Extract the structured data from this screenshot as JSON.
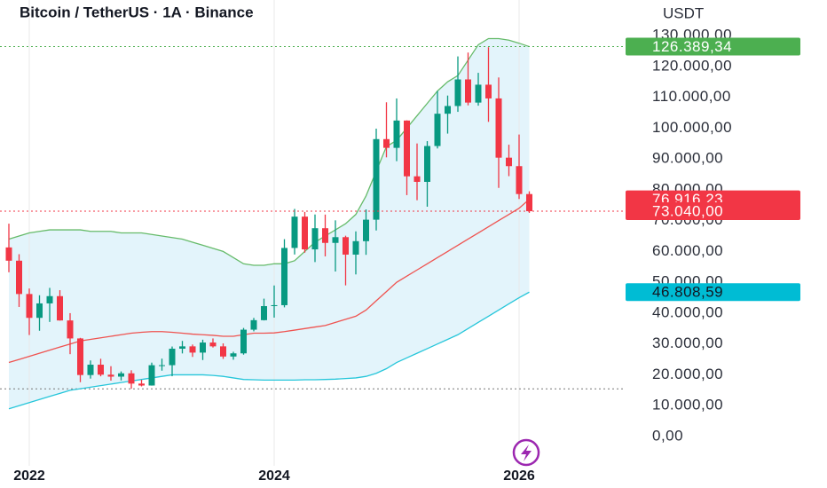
{
  "chart_data": {
    "type": "candlestick",
    "title": "Bitcoin / TetherUS · 1A · Binance",
    "currency": "USDT",
    "categories": [
      null,
      null,
      "2022",
      null,
      null,
      null,
      null,
      null,
      null,
      null,
      null,
      null,
      null,
      null,
      null,
      null,
      null,
      null,
      null,
      null,
      null,
      null,
      null,
      null,
      null,
      null,
      "2024",
      null,
      null,
      null,
      null,
      null,
      null,
      null,
      null,
      null,
      null,
      null,
      null,
      null,
      null,
      null,
      null,
      null,
      null,
      null,
      null,
      null,
      null,
      null,
      "2026",
      null
    ],
    "open": [
      61300,
      57000,
      46200,
      38470,
      43160,
      45510,
      37630,
      31800,
      19940,
      23290,
      20050,
      19420,
      20490,
      17160,
      16540,
      23120,
      23130,
      28470,
      29230,
      27210,
      30470,
      29230,
      25940,
      26960,
      34640,
      37720,
      42280,
      42580,
      61130,
      71280,
      60670,
      67530,
      62770,
      64630,
      58970,
      63330,
      70290,
      96410,
      93580,
      102430,
      84350,
      82550,
      94170,
      104640,
      107140,
      115760,
      108250,
      114050,
      109600,
      90400,
      87650,
      78600
    ],
    "high": [
      69000,
      59100,
      47990,
      45800,
      48190,
      47450,
      40000,
      31990,
      24670,
      25210,
      22800,
      21100,
      21480,
      18390,
      23960,
      25250,
      29180,
      31000,
      29820,
      31390,
      31800,
      30200,
      27480,
      35200,
      38450,
      44700,
      48970,
      63970,
      73780,
      72800,
      71980,
      71950,
      70080,
      65100,
      66500,
      73620,
      99800,
      108350,
      109590,
      102500,
      95000,
      95760,
      111980,
      110530,
      123220,
      124470,
      117900,
      126200,
      116400,
      94600,
      97900,
      79500
    ],
    "low": [
      53250,
      42000,
      32900,
      34300,
      37150,
      37580,
      26700,
      17620,
      18780,
      19520,
      18125,
      18190,
      15480,
      16250,
      16500,
      21350,
      19550,
      26940,
      25810,
      24800,
      28860,
      25170,
      24900,
      26540,
      34100,
      37630,
      38550,
      41880,
      59010,
      59600,
      56550,
      58400,
      53490,
      49000,
      52550,
      58900,
      66800,
      90500,
      89260,
      78260,
      76600,
      74500,
      93380,
      98200,
      105250,
      107350,
      107250,
      102000,
      80600,
      84400,
      77000,
      72500
    ],
    "close": [
      57000,
      46200,
      38470,
      43160,
      45510,
      37630,
      31800,
      19940,
      23290,
      20050,
      19420,
      20490,
      17160,
      16540,
      23120,
      23130,
      28470,
      29230,
      27210,
      30470,
      29230,
      25940,
      26960,
      34640,
      37720,
      42280,
      42580,
      61130,
      71280,
      60670,
      67530,
      62770,
      64630,
      58970,
      63330,
      70290,
      96410,
      93580,
      102430,
      84350,
      82550,
      94170,
      104640,
      107140,
      115760,
      108250,
      114050,
      109600,
      90400,
      87650,
      78600,
      73040
    ],
    "up_color": "#089981",
    "down_color": "#f23645",
    "bands": [
      {
        "color": "#66bb6a",
        "values": [
          64000,
          65000,
          66000,
          66500,
          67000,
          67000,
          67000,
          67000,
          66500,
          66500,
          66500,
          66000,
          66000,
          66000,
          65500,
          65000,
          64500,
          64000,
          63000,
          62000,
          61000,
          60000,
          58000,
          56000,
          55500,
          55500,
          56000,
          56000,
          57000,
          60000,
          63000,
          65000,
          67000,
          69000,
          72000,
          78000,
          86000,
          94000,
          96000,
          100000,
          104000,
          108000,
          112000,
          115000,
          117000,
          122000,
          127000,
          129000,
          129000,
          128500,
          127500,
          126389.34
        ]
      },
      {
        "color": "#ef5350",
        "values": [
          24000,
          25000,
          26000,
          27000,
          28000,
          29000,
          30000,
          31000,
          31500,
          32000,
          32500,
          33000,
          33500,
          33800,
          34000,
          34000,
          33800,
          33500,
          33200,
          33000,
          32800,
          32500,
          32500,
          33000,
          33500,
          33500,
          33600,
          34000,
          34500,
          35000,
          35500,
          36000,
          37000,
          38000,
          39000,
          41000,
          44000,
          47000,
          50000,
          52000,
          54000,
          56000,
          58000,
          60000,
          62000,
          64000,
          66000,
          68000,
          70000,
          72000,
          74000,
          76916.23
        ]
      },
      {
        "color": "#26c6da",
        "values": [
          9000,
          10000,
          11000,
          12000,
          13000,
          14000,
          15000,
          15500,
          16000,
          16500,
          17000,
          17500,
          18000,
          18500,
          19000,
          19500,
          20000,
          20000,
          20000,
          20000,
          19800,
          19500,
          19000,
          18500,
          18400,
          18300,
          18300,
          18300,
          18300,
          18400,
          18400,
          18500,
          18600,
          18800,
          19000,
          19500,
          20500,
          22000,
          24000,
          25500,
          27000,
          28500,
          30000,
          31500,
          33000,
          35000,
          37000,
          39000,
          41000,
          43000,
          45000,
          46808.59
        ]
      }
    ],
    "band_fill": "#e3f4fb",
    "low_level": 15476,
    "price_labels": [
      {
        "value": 126389.34,
        "label": "126.389,34",
        "color": "#4caf50"
      },
      {
        "value": 76916.23,
        "label": "76.916,23",
        "color": "#f23645"
      },
      {
        "value": 73040,
        "label": "73.040,00",
        "color": "#f23645"
      },
      {
        "value": 46808.59,
        "label": "46.808,59",
        "color": "#00bcd4"
      }
    ],
    "ylim": [
      0,
      130000
    ],
    "yticks": [
      {
        "value": 0,
        "label": "0,00"
      },
      {
        "value": 10000,
        "label": "10.000,00"
      },
      {
        "value": 20000,
        "label": "20.000,00"
      },
      {
        "value": 30000,
        "label": "30.000,00"
      },
      {
        "value": 40000,
        "label": "40.000,00"
      },
      {
        "value": 50000,
        "label": "50.000,00"
      },
      {
        "value": 60000,
        "label": "60.000,00"
      },
      {
        "value": 70000,
        "label": "70.000,00"
      },
      {
        "value": 80000,
        "label": "80.000,00"
      },
      {
        "value": 90000,
        "label": "90.000,00"
      },
      {
        "value": 100000,
        "label": "100.000,00"
      },
      {
        "value": 110000,
        "label": "110.000,00"
      },
      {
        "value": 120000,
        "label": "120.000,00"
      },
      {
        "value": 130000,
        "label": "130.000,00"
      }
    ]
  }
}
